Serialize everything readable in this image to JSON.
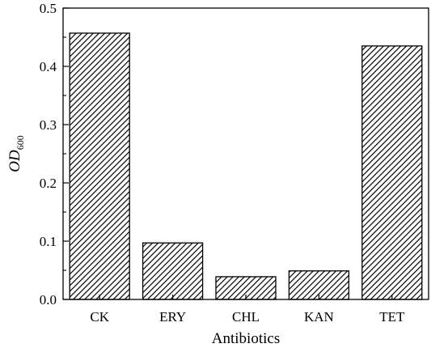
{
  "chart_data": {
    "type": "bar",
    "xlabel": "Antibiotics",
    "ylabel": {
      "main": "OD",
      "sub": "600"
    },
    "categories": [
      "CK",
      "ERY",
      "CHL",
      "KAN",
      "TET"
    ],
    "values": [
      0.457,
      0.097,
      0.039,
      0.049,
      0.435
    ],
    "ylim": [
      0,
      0.5
    ],
    "yticks": [
      "0.0",
      "0.1",
      "0.2",
      "0.3",
      "0.4",
      "0.5"
    ],
    "bar_fill": "hatched",
    "grid": false,
    "legend": "none"
  }
}
